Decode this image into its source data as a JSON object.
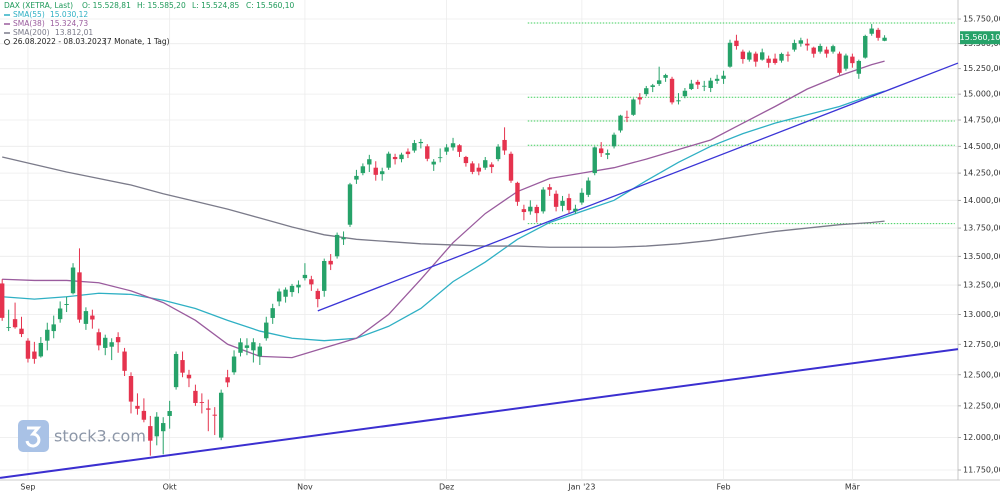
{
  "chart_data": {
    "type": "candlestick",
    "header": {
      "symbol": "DAX (XETRA, Last)",
      "open": "O: 15.528,81",
      "high": "H: 15.585,20",
      "low": "L: 15.524,85",
      "close": "C: 15.560,10",
      "period": "26.08.2022 - 08.03.2023",
      "duration": "(7 Monate, 1 Tag)"
    },
    "watermark": "stock3.com",
    "last_price_label": "15.560,10",
    "log_scale": true,
    "grid": true,
    "up_color": "#26a269",
    "down_color": "#e5334e",
    "xlim": [
      -0.34,
      148.4
    ],
    "ylim": [
      11674,
      15946
    ],
    "yticks": [
      {
        "value": 11750,
        "label": "11.750,000"
      },
      {
        "value": 12000,
        "label": "12.000,000"
      },
      {
        "value": 12250,
        "label": "12.250,000"
      },
      {
        "value": 12500,
        "label": "12.500,000"
      },
      {
        "value": 12750,
        "label": "12.750,000"
      },
      {
        "value": 13000,
        "label": "13.000,000"
      },
      {
        "value": 13250,
        "label": "13.250,000"
      },
      {
        "value": 13500,
        "label": "13.500,000"
      },
      {
        "value": 13750,
        "label": "13.750,000"
      },
      {
        "value": 14000,
        "label": "14.000,000"
      },
      {
        "value": 14250,
        "label": "14.250,000"
      },
      {
        "value": 14500,
        "label": "14.500,000"
      },
      {
        "value": 14750,
        "label": "14.750,000"
      },
      {
        "value": 15000,
        "label": "15.000,000"
      },
      {
        "value": 15250,
        "label": "15.250,000"
      },
      {
        "value": 15500,
        "label": "15.500,000"
      },
      {
        "value": 15750,
        "label": "15.750,000"
      }
    ],
    "categories": [
      null,
      null,
      null,
      null,
      "Sep",
      null,
      null,
      null,
      null,
      null,
      null,
      null,
      null,
      null,
      null,
      null,
      null,
      null,
      null,
      null,
      null,
      null,
      null,
      null,
      null,
      null,
      "Okt",
      null,
      null,
      null,
      null,
      null,
      null,
      null,
      null,
      null,
      null,
      null,
      null,
      null,
      null,
      null,
      null,
      null,
      null,
      null,
      null,
      "Nov",
      null,
      null,
      null,
      null,
      null,
      null,
      null,
      null,
      null,
      null,
      null,
      null,
      null,
      null,
      null,
      null,
      null,
      null,
      null,
      null,
      null,
      "Dez",
      null,
      null,
      null,
      null,
      null,
      null,
      null,
      null,
      null,
      null,
      null,
      null,
      null,
      null,
      null,
      null,
      null,
      null,
      null,
      null,
      "Jan '23",
      null,
      null,
      null,
      null,
      null,
      null,
      null,
      null,
      null,
      null,
      null,
      null,
      null,
      null,
      null,
      null,
      null,
      null,
      null,
      null,
      null,
      "Feb",
      null,
      null,
      null,
      null,
      null,
      null,
      null,
      null,
      null,
      null,
      null,
      null,
      null,
      null,
      null,
      null,
      null,
      null,
      null,
      "Mär",
      null,
      null,
      null,
      null,
      null
    ],
    "ohlc": [
      [
        13264,
        13301,
        12946,
        12971
      ],
      [
        12890,
        13040,
        12860,
        12893
      ],
      [
        12960,
        13100,
        12880,
        12892
      ],
      [
        12880,
        12980,
        12810,
        12835
      ],
      [
        12780,
        12800,
        12600,
        12631
      ],
      [
        12690,
        12770,
        12590,
        12630
      ],
      [
        12650,
        12810,
        12640,
        12761
      ],
      [
        12780,
        12930,
        12700,
        12871
      ],
      [
        12860,
        12990,
        12800,
        12916
      ],
      [
        12960,
        13110,
        12930,
        13050
      ],
      [
        13080,
        13150,
        13020,
        13088
      ],
      [
        13180,
        13440,
        13170,
        13402
      ],
      [
        13360,
        13570,
        12930,
        12956
      ],
      [
        12920,
        13060,
        12870,
        13028
      ],
      [
        12990,
        13040,
        12880,
        12957
      ],
      [
        12850,
        12880,
        12700,
        12741
      ],
      [
        12720,
        12830,
        12660,
        12804
      ],
      [
        12730,
        12800,
        12620,
        12767
      ],
      [
        12810,
        12850,
        12680,
        12767
      ],
      [
        12690,
        12720,
        12490,
        12532
      ],
      [
        12490,
        12520,
        12190,
        12284
      ],
      [
        12250,
        12350,
        12180,
        12227
      ],
      [
        12210,
        12310,
        12120,
        12140
      ],
      [
        12090,
        12170,
        11860,
        11976
      ],
      [
        12010,
        12200,
        11940,
        12164
      ],
      [
        12050,
        12160,
        11870,
        12114
      ],
      [
        12170,
        12290,
        12070,
        12209
      ],
      [
        12400,
        12690,
        12380,
        12670
      ],
      [
        12620,
        12690,
        12480,
        12517
      ],
      [
        12500,
        12540,
        12400,
        12471
      ],
      [
        12370,
        12420,
        12250,
        12273
      ],
      [
        12280,
        12350,
        12190,
        12273
      ],
      [
        12230,
        12300,
        12050,
        12219
      ],
      [
        12180,
        12240,
        12020,
        12172
      ],
      [
        12000,
        12380,
        11980,
        12355
      ],
      [
        12480,
        12540,
        12400,
        12438
      ],
      [
        12520,
        12700,
        12500,
        12649
      ],
      [
        12680,
        12800,
        12650,
        12766
      ],
      [
        12720,
        12800,
        12660,
        12741
      ],
      [
        12700,
        12800,
        12600,
        12767
      ],
      [
        12650,
        12760,
        12580,
        12731
      ],
      [
        12800,
        12980,
        12780,
        12931
      ],
      [
        12970,
        13090,
        12920,
        13053
      ],
      [
        13110,
        13220,
        13070,
        13195
      ],
      [
        13150,
        13230,
        13100,
        13211
      ],
      [
        13190,
        13260,
        13150,
        13243
      ],
      [
        13230,
        13290,
        13180,
        13253
      ],
      [
        13310,
        13440,
        13290,
        13338
      ],
      [
        13300,
        13330,
        13200,
        13256
      ],
      [
        13200,
        13220,
        13060,
        13130
      ],
      [
        13200,
        13480,
        13150,
        13459
      ],
      [
        13460,
        13520,
        13380,
        13429
      ],
      [
        13500,
        13710,
        13480,
        13689
      ],
      [
        13650,
        13720,
        13600,
        13666
      ],
      [
        13780,
        14160,
        13760,
        14146
      ],
      [
        14190,
        14280,
        14150,
        14224
      ],
      [
        14250,
        14340,
        14230,
        14313
      ],
      [
        14330,
        14420,
        14260,
        14379
      ],
      [
        14300,
        14360,
        14180,
        14234
      ],
      [
        14240,
        14300,
        14180,
        14267
      ],
      [
        14300,
        14450,
        14280,
        14431
      ],
      [
        14400,
        14430,
        14330,
        14380
      ],
      [
        14380,
        14440,
        14350,
        14422
      ],
      [
        14450,
        14480,
        14390,
        14427
      ],
      [
        14460,
        14560,
        14440,
        14531
      ],
      [
        14530,
        14570,
        14480,
        14541
      ],
      [
        14500,
        14520,
        14360,
        14383
      ],
      [
        14330,
        14380,
        14270,
        14356
      ],
      [
        14390,
        14480,
        14350,
        14397
      ],
      [
        14450,
        14520,
        14420,
        14490
      ],
      [
        14490,
        14580,
        14460,
        14529
      ],
      [
        14510,
        14520,
        14400,
        14448
      ],
      [
        14400,
        14410,
        14310,
        14343
      ],
      [
        14340,
        14360,
        14240,
        14261
      ],
      [
        14300,
        14340,
        14230,
        14264
      ],
      [
        14300,
        14400,
        14280,
        14370
      ],
      [
        14330,
        14350,
        14250,
        14306
      ],
      [
        14380,
        14520,
        14360,
        14497
      ],
      [
        14560,
        14680,
        14420,
        14461
      ],
      [
        14430,
        14450,
        14160,
        14180
      ],
      [
        14160,
        14170,
        13950,
        13987
      ],
      [
        13920,
        13960,
        13820,
        13894
      ],
      [
        13900,
        14000,
        13870,
        13942
      ],
      [
        13940,
        13960,
        13800,
        13884
      ],
      [
        13900,
        14120,
        13880,
        14098
      ],
      [
        14120,
        14150,
        14040,
        14097
      ],
      [
        14060,
        14090,
        13900,
        13941
      ],
      [
        13950,
        14040,
        13900,
        13995
      ],
      [
        14020,
        14060,
        13880,
        13911
      ],
      [
        13900,
        13960,
        13880,
        13924
      ],
      [
        13980,
        14110,
        13960,
        14069
      ],
      [
        14050,
        14210,
        14030,
        14181
      ],
      [
        14250,
        14500,
        14230,
        14490
      ],
      [
        14480,
        14540,
        14400,
        14436
      ],
      [
        14420,
        14470,
        14380,
        14436
      ],
      [
        14500,
        14630,
        14480,
        14610
      ],
      [
        14650,
        14800,
        14630,
        14792
      ],
      [
        14780,
        14840,
        14730,
        14774
      ],
      [
        14800,
        14960,
        14790,
        14948
      ],
      [
        14970,
        15010,
        14900,
        14948
      ],
      [
        15000,
        15080,
        14980,
        15058
      ],
      [
        15070,
        15100,
        15020,
        15086
      ],
      [
        15100,
        15270,
        15080,
        15135
      ],
      [
        15160,
        15200,
        15120,
        15187
      ],
      [
        15150,
        15170,
        14900,
        14920
      ],
      [
        14930,
        15010,
        14900,
        14940
      ],
      [
        14980,
        15060,
        14960,
        15033
      ],
      [
        15050,
        15140,
        15040,
        15103
      ],
      [
        15120,
        15140,
        15050,
        15093
      ],
      [
        15080,
        15130,
        15030,
        15081
      ],
      [
        15060,
        15160,
        15020,
        15132
      ],
      [
        15130,
        15190,
        15100,
        15150
      ],
      [
        15150,
        15230,
        15100,
        15181
      ],
      [
        15270,
        15540,
        15260,
        15509
      ],
      [
        15530,
        15590,
        15440,
        15476
      ],
      [
        15420,
        15440,
        15300,
        15346
      ],
      [
        15340,
        15430,
        15320,
        15412
      ],
      [
        15400,
        15420,
        15270,
        15320
      ],
      [
        15340,
        15450,
        15330,
        15413
      ],
      [
        15350,
        15380,
        15260,
        15308
      ],
      [
        15350,
        15400,
        15290,
        15307
      ],
      [
        15330,
        15410,
        15310,
        15397
      ],
      [
        15390,
        15420,
        15320,
        15380
      ],
      [
        15440,
        15540,
        15420,
        15507
      ],
      [
        15500,
        15560,
        15470,
        15534
      ],
      [
        15500,
        15550,
        15430,
        15482
      ],
      [
        15460,
        15470,
        15360,
        15399
      ],
      [
        15420,
        15500,
        15400,
        15477
      ],
      [
        15440,
        15470,
        15360,
        15400
      ],
      [
        15420,
        15490,
        15400,
        15475
      ],
      [
        15400,
        15420,
        15190,
        15209
      ],
      [
        15250,
        15400,
        15230,
        15381
      ],
      [
        15370,
        15400,
        15260,
        15305
      ],
      [
        15200,
        15340,
        15150,
        15327
      ],
      [
        15360,
        15590,
        15350,
        15578
      ],
      [
        15600,
        15700,
        15580,
        15653
      ],
      [
        15640,
        15660,
        15530,
        15559
      ],
      [
        15528.81,
        15585.2,
        15524.85,
        15560.1
      ]
    ],
    "lines": [
      {
        "name": "SMA(55)",
        "last_label": "15.030,12",
        "color": "#2fb0c4",
        "x": [
          0,
          5,
          10,
          15,
          20,
          25,
          30,
          35,
          40,
          45,
          50,
          55,
          60,
          65,
          70,
          75,
          80,
          85,
          90,
          95,
          100,
          105,
          110,
          115,
          120,
          125,
          130,
          135,
          137
        ],
        "values": [
          13150,
          13130,
          13150,
          13180,
          13170,
          13120,
          13050,
          12950,
          12860,
          12800,
          12780,
          12800,
          12900,
          13050,
          13280,
          13450,
          13650,
          13800,
          13900,
          14000,
          14180,
          14350,
          14500,
          14620,
          14720,
          14800,
          14880,
          14990,
          15030
        ]
      },
      {
        "name": "SMA(38)",
        "last_label": "15.324,73",
        "color": "#9a5c9e",
        "x": [
          0,
          5,
          10,
          15,
          20,
          25,
          30,
          35,
          40,
          45,
          50,
          55,
          60,
          65,
          70,
          75,
          80,
          85,
          90,
          95,
          100,
          105,
          110,
          115,
          120,
          125,
          130,
          135,
          137
        ],
        "values": [
          13300,
          13290,
          13290,
          13270,
          13200,
          13100,
          12950,
          12750,
          12650,
          12640,
          12720,
          12800,
          13000,
          13300,
          13620,
          13880,
          14080,
          14200,
          14250,
          14300,
          14380,
          14470,
          14560,
          14720,
          14880,
          15050,
          15180,
          15290,
          15325
        ]
      },
      {
        "name": "SMA(200)",
        "last_label": "13.812,01",
        "color": "#7b7b8a",
        "x": [
          0,
          5,
          10,
          15,
          20,
          25,
          30,
          35,
          40,
          45,
          50,
          55,
          60,
          65,
          70,
          75,
          80,
          85,
          90,
          95,
          100,
          105,
          110,
          115,
          120,
          125,
          130,
          135,
          137
        ],
        "values": [
          14400,
          14330,
          14260,
          14200,
          14140,
          14060,
          13990,
          13920,
          13840,
          13760,
          13690,
          13650,
          13630,
          13610,
          13600,
          13590,
          13590,
          13580,
          13580,
          13580,
          13590,
          13610,
          13640,
          13680,
          13720,
          13750,
          13780,
          13800,
          13812
        ]
      }
    ],
    "levels": [
      {
        "value": 15710,
        "x": [
          81.6,
          147.9
        ]
      },
      {
        "value": 14970,
        "x": [
          81.6,
          147.9
        ]
      },
      {
        "value": 14740,
        "x": [
          81.6,
          147.9
        ]
      },
      {
        "value": 14510,
        "x": [
          81.6,
          147.9
        ]
      },
      {
        "value": 13790,
        "x": [
          81.6,
          147.9
        ]
      }
    ],
    "level_color": "#3fcf5c",
    "trendlines": [
      {
        "x": [
          49,
          148.4
        ],
        "values": [
          13030,
          15306
        ],
        "color": "#3b35d6",
        "width": 1.3
      },
      {
        "x": [
          -0.34,
          148.4
        ],
        "values": [
          11690,
          12710
        ],
        "color": "#3b2fd0",
        "width": 2
      }
    ]
  }
}
